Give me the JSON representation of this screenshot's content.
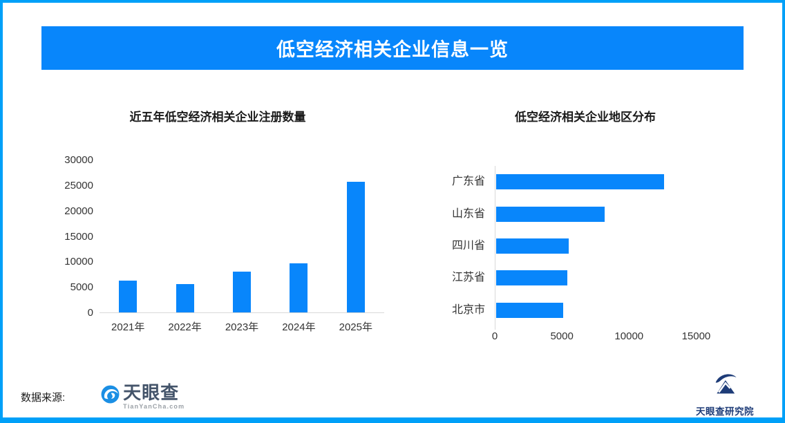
{
  "page": {
    "title": "低空经济相关企业信息一览",
    "footer": {
      "source_label": "数据来源:",
      "brand_name": "天眼查",
      "brand_domain": "TianYanCha.com",
      "institute_name": "天眼查研究院"
    },
    "colors": {
      "accent": "#0886FB",
      "frame_border": "#00A0F8",
      "axis_line": "#D8D8D8",
      "label_text": "#333333",
      "brand_slate": "#44546A",
      "brand_blue": "#1B8FE4",
      "institute_navy": "#1E3C78"
    }
  },
  "chart_data": [
    {
      "type": "bar",
      "orientation": "vertical",
      "title": "近五年低空经济相关企业注册数量",
      "categories": [
        "2021年",
        "2022年",
        "2023年",
        "2024年",
        "2025年"
      ],
      "values": [
        6300,
        5500,
        8000,
        9700,
        25700
      ],
      "ylim": [
        0,
        30000
      ],
      "yticks": [
        0,
        5000,
        10000,
        15000,
        20000,
        25000,
        30000
      ],
      "xlabel": "",
      "ylabel": "",
      "grid": false,
      "legend": false
    },
    {
      "type": "bar",
      "orientation": "horizontal",
      "title": "低空经济相关企业地区分布",
      "categories": [
        "广东省",
        "山东省",
        "四川省",
        "江苏省",
        "北京市"
      ],
      "values": [
        12500,
        8100,
        5400,
        5300,
        5000
      ],
      "xlim": [
        0,
        17500
      ],
      "xticks": [
        0,
        5000,
        10000,
        15000
      ],
      "xlabel": "",
      "ylabel": "",
      "grid": false,
      "legend": false
    }
  ]
}
